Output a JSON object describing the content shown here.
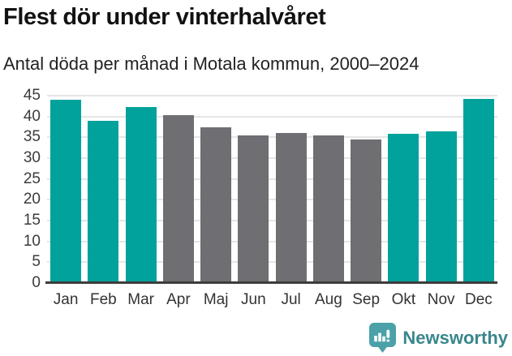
{
  "header": {
    "title": "Flest dör under vinterhalvåret",
    "subtitle": "Antal döda per månad i Motala kommun, 2000–2024"
  },
  "chart_data": {
    "type": "bar",
    "title": "Flest dör under vinterhalvåret",
    "subtitle": "Antal döda per månad i Motala kommun, 2000–2024",
    "categories": [
      "Jan",
      "Feb",
      "Mar",
      "Apr",
      "Maj",
      "Jun",
      "Jul",
      "Aug",
      "Sep",
      "Okt",
      "Nov",
      "Dec"
    ],
    "values": [
      44.0,
      38.9,
      42.2,
      40.4,
      37.4,
      35.4,
      36.1,
      35.4,
      34.4,
      35.8,
      36.5,
      44.2
    ],
    "bar_colors": [
      "#00a29b",
      "#00a29b",
      "#00a29b",
      "#6e6e73",
      "#6e6e73",
      "#6e6e73",
      "#6e6e73",
      "#6e6e73",
      "#6e6e73",
      "#00a29b",
      "#00a29b",
      "#00a29b"
    ],
    "highlight_color": "#00a29b",
    "muted_color": "#6e6e73",
    "highlighted_months": [
      "Jan",
      "Feb",
      "Mar",
      "Okt",
      "Nov",
      "Dec"
    ],
    "xlabel": "",
    "ylabel": "",
    "ylim": [
      0,
      45
    ],
    "yticks": [
      0,
      5,
      10,
      15,
      20,
      25,
      30,
      35,
      40,
      45
    ],
    "grid": "horizontal",
    "legend": "none",
    "gridline_color": "#e5e5e5",
    "axis_line_color": "#3d3d3d"
  },
  "footer": {
    "brand": "Newsworthy",
    "logo_icon": "newsworthy-pin-bar-chart-icon",
    "brand_color": "#39868d",
    "icon_color": "#4aa1a7"
  }
}
